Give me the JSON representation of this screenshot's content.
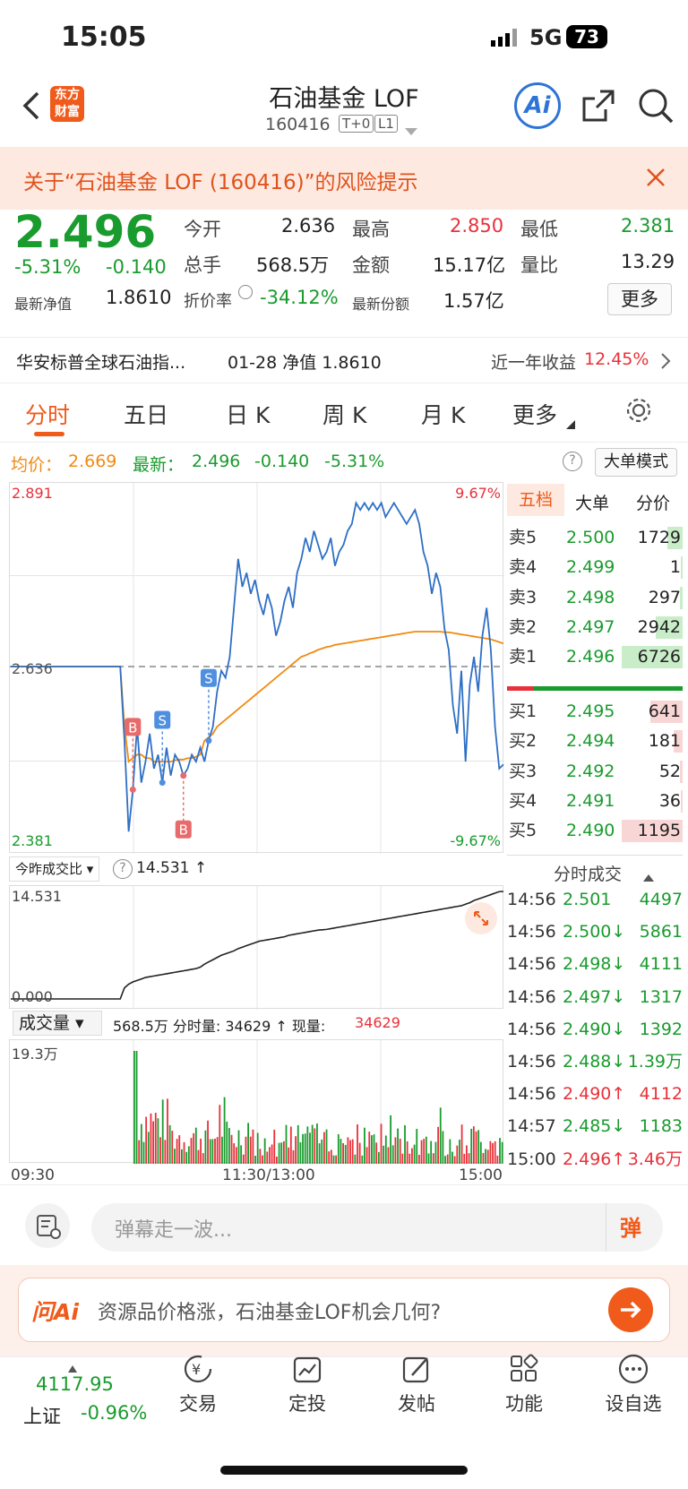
{
  "status": {
    "time": "15:05",
    "network": "5G",
    "battery": "73"
  },
  "header": {
    "logo_line1": "东方",
    "logo_line2": "财富",
    "title": "石油基金 LOF",
    "code": "160416",
    "tag1": "T+0",
    "tag2": "L1",
    "ai_label": "Ai"
  },
  "risk": {
    "text": "关于“石油基金 LOF (160416)”的风险提示"
  },
  "quote": {
    "price": "2.496",
    "pct": "-5.31%",
    "chg": "-0.140",
    "nav_label": "最新净值",
    "nav": "1.8610",
    "items": [
      {
        "label": "今开",
        "value": "2.636"
      },
      {
        "label": "最高",
        "value": "2.850"
      },
      {
        "label": "最低",
        "value": "2.381"
      },
      {
        "label": "总手",
        "value": "568.5万"
      },
      {
        "label": "金额",
        "value": "15.17亿"
      },
      {
        "label": "量比",
        "value": "13.29"
      },
      {
        "label": "折价率",
        "value": "-34.12%"
      },
      {
        "label": "最新份额",
        "value": "1.57亿"
      }
    ],
    "more": "更多"
  },
  "navrow": {
    "name": "华安标普全球石油指...",
    "date": "01-28 净值 1.8610",
    "ret_label": "近一年收益",
    "ret": "12.45%"
  },
  "tabs": [
    "分时",
    "五日",
    "日 K",
    "周 K",
    "月 K",
    "更多"
  ],
  "avgrow": {
    "avg_label": "均价：",
    "avg": "2.669",
    "latest_label": "最新：",
    "latest": "2.496",
    "chg": "-0.140",
    "pct": "-5.31%",
    "big_mode": "大单模式"
  },
  "chart_labels": {
    "ymax": "2.891",
    "ymid": "2.636",
    "ymin": "2.381",
    "pmax": "9.67%",
    "pmin": "-9.67%",
    "x0": "09:30",
    "x1": "11:30/13:00",
    "x2": "15:00",
    "ratio_sel": "今昨成交比",
    "ratio_val": "14.531 ↑",
    "ratio_max": "14.531",
    "ratio_min": "0.000",
    "vol_sel": "成交量",
    "vol_info1": "568.5万 分时量: 34629 ↑ 现量:",
    "vol_info2": "34629",
    "vol_max": "19.3万"
  },
  "orderbook": {
    "tabs": [
      "五档",
      "大单",
      "分价"
    ],
    "asks": [
      {
        "l": "卖5",
        "p": "2.500",
        "v": "1729"
      },
      {
        "l": "卖4",
        "p": "2.499",
        "v": "1"
      },
      {
        "l": "卖3",
        "p": "2.498",
        "v": "297"
      },
      {
        "l": "卖2",
        "p": "2.497",
        "v": "2942"
      },
      {
        "l": "卖1",
        "p": "2.496",
        "v": "6726"
      }
    ],
    "bids": [
      {
        "l": "买1",
        "p": "2.495",
        "v": "641"
      },
      {
        "l": "买2",
        "p": "2.494",
        "v": "181"
      },
      {
        "l": "买3",
        "p": "2.492",
        "v": "52"
      },
      {
        "l": "买4",
        "p": "2.491",
        "v": "36"
      },
      {
        "l": "买5",
        "p": "2.490",
        "v": "1195"
      }
    ]
  },
  "ticks": {
    "title": "分时成交",
    "rows": [
      {
        "t": "14:56",
        "p": "2.501",
        "d": "",
        "v": "4497",
        "c": "g"
      },
      {
        "t": "14:56",
        "p": "2.500↓",
        "d": "",
        "v": "5861",
        "c": "g"
      },
      {
        "t": "14:56",
        "p": "2.498↓",
        "d": "",
        "v": "4111",
        "c": "g"
      },
      {
        "t": "14:56",
        "p": "2.497↓",
        "d": "",
        "v": "1317",
        "c": "g"
      },
      {
        "t": "14:56",
        "p": "2.490↓",
        "d": "",
        "v": "1392",
        "c": "g"
      },
      {
        "t": "14:56",
        "p": "2.488↓",
        "d": "",
        "v": "1.39万",
        "c": "g"
      },
      {
        "t": "14:56",
        "p": "2.490↑",
        "d": "",
        "v": "4112",
        "c": "r"
      },
      {
        "t": "14:57",
        "p": "2.485↓",
        "d": "",
        "v": "1183",
        "c": "g"
      },
      {
        "t": "15:00",
        "p": "2.496↑",
        "d": "",
        "v": "3.46万",
        "c": "r"
      }
    ]
  },
  "danmu": {
    "placeholder": "弹幕走一波...",
    "btn": "弹"
  },
  "ask": {
    "brand": "问Ai",
    "text": "资源品价格涨，石油基金LOF机会几何?"
  },
  "bottom": {
    "index_val": "4117.95",
    "index_name": "上证",
    "index_pct": "-0.96%",
    "items": [
      "交易",
      "定投",
      "发帖",
      "功能",
      "设自选"
    ]
  },
  "colors": {
    "up": "#e8313a",
    "down": "#1a9b2e",
    "accent": "#f05a1a",
    "avg": "#f08a13",
    "price": "#2e6fc4"
  },
  "chart_data": {
    "type": "line",
    "title": "",
    "ylim": [
      2.381,
      2.891
    ],
    "base": 2.636,
    "price": [
      2.636,
      2.636,
      2.636,
      2.636,
      2.636,
      2.636,
      2.636,
      2.636,
      2.636,
      2.636,
      2.636,
      2.636,
      2.636,
      2.636,
      2.636,
      2.636,
      2.636,
      2.636,
      2.636,
      2.636,
      2.636,
      2.636,
      2.636,
      2.636,
      2.636,
      2.636,
      2.636,
      2.53,
      2.4,
      2.46,
      2.55,
      2.47,
      2.5,
      2.54,
      2.49,
      2.51,
      2.47,
      2.52,
      2.48,
      2.51,
      2.5,
      2.48,
      2.49,
      2.51,
      2.5,
      2.52,
      2.5,
      2.53,
      2.55,
      2.6,
      2.63,
      2.62,
      2.65,
      2.72,
      2.79,
      2.75,
      2.77,
      2.74,
      2.76,
      2.73,
      2.71,
      2.74,
      2.72,
      2.68,
      2.7,
      2.73,
      2.75,
      2.72,
      2.77,
      2.79,
      2.82,
      2.8,
      2.83,
      2.81,
      2.79,
      2.8,
      2.82,
      2.78,
      2.8,
      2.81,
      2.83,
      2.84,
      2.87,
      2.86,
      2.87,
      2.86,
      2.87,
      2.86,
      2.87,
      2.85,
      2.86,
      2.87,
      2.86,
      2.85,
      2.84,
      2.85,
      2.86,
      2.84,
      2.8,
      2.78,
      2.74,
      2.77,
      2.75,
      2.69,
      2.66,
      2.58,
      2.54,
      2.63,
      2.5,
      2.61,
      2.65,
      2.6,
      2.68,
      2.72,
      2.66,
      2.55,
      2.49,
      2.496
    ],
    "avg": [
      2.636,
      2.636,
      2.636,
      2.636,
      2.636,
      2.636,
      2.636,
      2.636,
      2.636,
      2.636,
      2.636,
      2.636,
      2.636,
      2.636,
      2.636,
      2.636,
      2.636,
      2.636,
      2.636,
      2.636,
      2.636,
      2.636,
      2.636,
      2.636,
      2.636,
      2.636,
      2.636,
      2.55,
      2.5,
      2.505,
      2.51,
      2.51,
      2.505,
      2.505,
      2.5,
      2.5,
      2.5,
      2.5,
      2.5,
      2.502,
      2.503,
      2.503,
      2.505,
      2.505,
      2.507,
      2.51,
      2.53,
      2.535,
      2.54,
      2.55,
      2.555,
      2.56,
      2.565,
      2.57,
      2.575,
      2.58,
      2.585,
      2.59,
      2.595,
      2.6,
      2.605,
      2.61,
      2.615,
      2.62,
      2.625,
      2.63,
      2.635,
      2.64,
      2.645,
      2.65,
      2.652,
      2.655,
      2.657,
      2.66,
      2.662,
      2.664,
      2.665,
      2.667,
      2.668,
      2.669,
      2.67,
      2.671,
      2.672,
      2.673,
      2.674,
      2.675,
      2.676,
      2.677,
      2.678,
      2.679,
      2.68,
      2.681,
      2.682,
      2.683,
      2.684,
      2.685,
      2.686,
      2.686,
      2.686,
      2.686,
      2.686,
      2.686,
      2.686,
      2.685,
      2.685,
      2.684,
      2.683,
      2.682,
      2.681,
      2.68,
      2.679,
      2.678,
      2.677,
      2.676,
      2.675,
      2.673,
      2.671,
      2.669
    ],
    "ratio": [
      0,
      0,
      0,
      0,
      0,
      0,
      0,
      0,
      0,
      0,
      0,
      0,
      0,
      0,
      0,
      0,
      0,
      0,
      0,
      0,
      0,
      0,
      0,
      0,
      0,
      0,
      0,
      1.5,
      2.0,
      2.3,
      2.5,
      2.7,
      2.9,
      3.0,
      3.1,
      3.2,
      3.3,
      3.4,
      3.5,
      3.6,
      3.7,
      3.8,
      3.9,
      4.0,
      4.1,
      4.3,
      4.7,
      5.0,
      5.3,
      5.6,
      5.9,
      6.1,
      6.3,
      6.5,
      6.8,
      7.0,
      7.2,
      7.4,
      7.6,
      7.8,
      7.9,
      8.0,
      8.1,
      8.2,
      8.3,
      8.4,
      8.6,
      8.7,
      8.8,
      8.9,
      9.0,
      9.1,
      9.2,
      9.3,
      9.35,
      9.4,
      9.5,
      9.6,
      9.7,
      9.8,
      9.9,
      10.0,
      10.1,
      10.2,
      10.3,
      10.4,
      10.5,
      10.6,
      10.7,
      10.8,
      10.9,
      11.0,
      11.1,
      11.2,
      11.3,
      11.4,
      11.5,
      11.6,
      11.7,
      11.8,
      11.9,
      12.0,
      12.1,
      12.2,
      12.3,
      12.4,
      12.5,
      12.6,
      12.8,
      13.0,
      13.3,
      13.5,
      13.7,
      13.9,
      14.1,
      14.3,
      14.5,
      14.531
    ]
  }
}
